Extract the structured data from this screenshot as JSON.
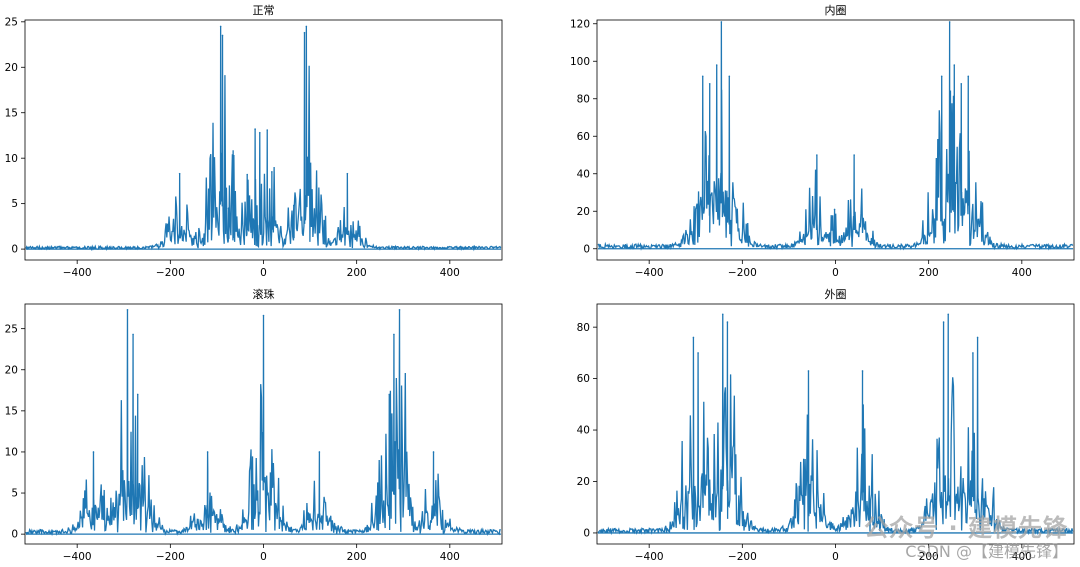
{
  "chart_data": [
    {
      "type": "line",
      "title": "正常",
      "xlabel": "",
      "ylabel": "",
      "xlim": [
        -512,
        512
      ],
      "ylim": [
        -1.2,
        25.2
      ],
      "x_ticks": [
        -400,
        -200,
        0,
        200,
        400
      ],
      "y_ticks": [
        0,
        5,
        10,
        15,
        20,
        25
      ],
      "grid": false,
      "line_color": "#1f77b4",
      "peaks": [
        {
          "x": -180,
          "y": 8.3
        },
        {
          "x": -92,
          "y": 24.5
        },
        {
          "x": -88,
          "y": 23.5
        },
        {
          "x": -75,
          "y": 4.5
        },
        {
          "x": -65,
          "y": 4.8
        },
        {
          "x": -35,
          "y": 8.2
        },
        {
          "x": -18,
          "y": 13.2
        },
        {
          "x": -8,
          "y": 12.8
        },
        {
          "x": 8,
          "y": 13.1
        },
        {
          "x": 18,
          "y": 8.5
        },
        {
          "x": 65,
          "y": 4.8
        },
        {
          "x": 88,
          "y": 23.8
        },
        {
          "x": 92,
          "y": 24.5
        },
        {
          "x": 180,
          "y": 8.3
        }
      ],
      "series": [
        {
          "values_approx_baseline": [
            0,
            1,
            2,
            3,
            4,
            5
          ]
        }
      ]
    },
    {
      "type": "line",
      "title": "内圈",
      "xlabel": "",
      "ylabel": "",
      "xlim": [
        -512,
        512
      ],
      "ylim": [
        -6,
        122
      ],
      "x_ticks": [
        -400,
        -200,
        0,
        200,
        400
      ],
      "y_ticks": [
        0,
        20,
        40,
        60,
        80,
        100,
        120
      ],
      "grid": false,
      "line_color": "#1f77b4",
      "peaks": [
        {
          "x": -285,
          "y": 92
        },
        {
          "x": -270,
          "y": 88
        },
        {
          "x": -255,
          "y": 98
        },
        {
          "x": -245,
          "y": 121
        },
        {
          "x": -228,
          "y": 92
        },
        {
          "x": -40,
          "y": 50
        },
        {
          "x": -2,
          "y": 21
        },
        {
          "x": 40,
          "y": 50
        },
        {
          "x": 228,
          "y": 92
        },
        {
          "x": 245,
          "y": 121
        },
        {
          "x": 255,
          "y": 98
        },
        {
          "x": 270,
          "y": 88
        },
        {
          "x": 285,
          "y": 92
        }
      ],
      "series": [
        {
          "values_approx_baseline": [
            0,
            5,
            10,
            15
          ]
        }
      ]
    },
    {
      "type": "line",
      "title": "滚珠",
      "xlabel": "",
      "ylabel": "",
      "xlim": [
        -512,
        512
      ],
      "ylim": [
        -1.2,
        28.0
      ],
      "x_ticks": [
        -400,
        -200,
        0,
        200,
        400
      ],
      "y_ticks": [
        0,
        5,
        10,
        15,
        20,
        25
      ],
      "grid": false,
      "line_color": "#1f77b4",
      "peaks": [
        {
          "x": -365,
          "y": 10.0
        },
        {
          "x": -292,
          "y": 27.3
        },
        {
          "x": -280,
          "y": 24.3
        },
        {
          "x": -270,
          "y": 17.0
        },
        {
          "x": -120,
          "y": 10.0
        },
        {
          "x": 0,
          "y": 26.6
        },
        {
          "x": 120,
          "y": 10.0
        },
        {
          "x": 270,
          "y": 17.0
        },
        {
          "x": 280,
          "y": 24.3
        },
        {
          "x": 292,
          "y": 27.3
        },
        {
          "x": 365,
          "y": 10.0
        }
      ],
      "series": [
        {
          "values_approx_baseline": [
            0,
            2,
            4
          ]
        }
      ]
    },
    {
      "type": "line",
      "title": "外圈",
      "xlabel": "",
      "ylabel": "",
      "xlim": [
        -512,
        512
      ],
      "ylim": [
        -4.3,
        89
      ],
      "x_ticks": [
        -400,
        -200,
        0,
        200,
        400
      ],
      "y_ticks": [
        0,
        20,
        40,
        60,
        80
      ],
      "grid": false,
      "line_color": "#1f77b4",
      "peaks": [
        {
          "x": -305,
          "y": 76
        },
        {
          "x": -295,
          "y": 70
        },
        {
          "x": -242,
          "y": 85
        },
        {
          "x": -232,
          "y": 82
        },
        {
          "x": -58,
          "y": 63
        },
        {
          "x": 58,
          "y": 63
        },
        {
          "x": 232,
          "y": 82
        },
        {
          "x": 242,
          "y": 85
        },
        {
          "x": 295,
          "y": 70
        },
        {
          "x": 305,
          "y": 76
        }
      ],
      "series": [
        {
          "values_approx_baseline": [
            0,
            10,
            20
          ]
        }
      ]
    }
  ],
  "watermark": {
    "line1": "公众号 · 建模先锋",
    "line2": "CSDN @【建模先锋】"
  }
}
